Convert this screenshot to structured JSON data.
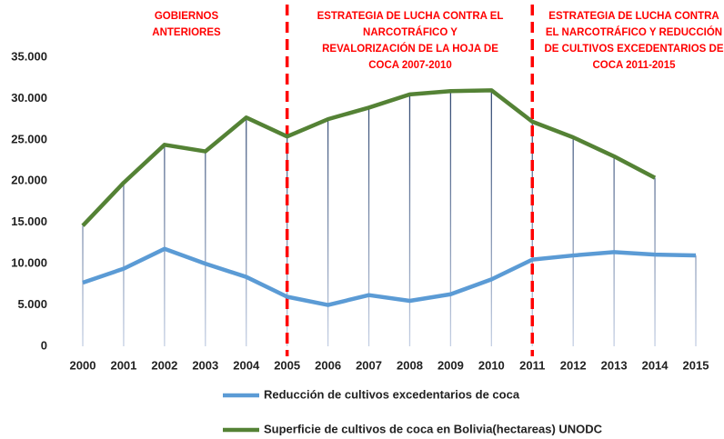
{
  "chart_data": {
    "type": "line",
    "categories": [
      "2000",
      "2001",
      "2002",
      "2003",
      "2004",
      "2005",
      "2006",
      "2007",
      "2008",
      "2009",
      "2010",
      "2011",
      "2012",
      "2013",
      "2014",
      "2015"
    ],
    "series": [
      {
        "name": "Reducción de cultivos excedentarios de coca",
        "color": "#5b9bd5",
        "values": [
          7700,
          9400,
          11800,
          10000,
          8400,
          6000,
          5000,
          6200,
          5500,
          6300,
          8100,
          10500,
          11000,
          11400,
          11100,
          11000
        ]
      },
      {
        "name": "Superficie de cultivos de coca en Bolivia(hectareas) UNODC",
        "color": "#548235",
        "values": [
          14600,
          19800,
          24400,
          23600,
          27700,
          25400,
          27500,
          28900,
          30500,
          30900,
          31000,
          27200,
          25300,
          23000,
          20400,
          null
        ]
      }
    ],
    "ylim": [
      0,
      35000
    ],
    "yticks": [
      0,
      {
        "value": 5000,
        "label": "5.000"
      },
      {
        "value": 10000,
        "label": "10.000"
      },
      {
        "value": 15000,
        "label": "15.000"
      },
      {
        "value": 20000,
        "label": "20.000"
      },
      {
        "value": 25000,
        "label": "25.000"
      },
      {
        "value": 30000,
        "label": "30.000"
      },
      {
        "value": 35000,
        "label": "35.000"
      }
    ],
    "vlines": [
      "2005",
      "2011"
    ],
    "annotations": [
      [
        "GOBIERNOS",
        "ANTERIORES"
      ],
      [
        "ESTRATEGIA DE LUCHA CONTRA EL",
        "NARCOTRÁFICO Y",
        "REVALORIZACIÓN DE LA HOJA DE",
        "COCA 2007-2010"
      ],
      [
        "ESTRATEGIA DE LUCHA CONTRA",
        "EL NARCOTRÁFICO Y REDUCCIÓN",
        "DE CULTIVOS EXCEDENTARIOS DE",
        "COCA 2011-2015"
      ]
    ]
  }
}
